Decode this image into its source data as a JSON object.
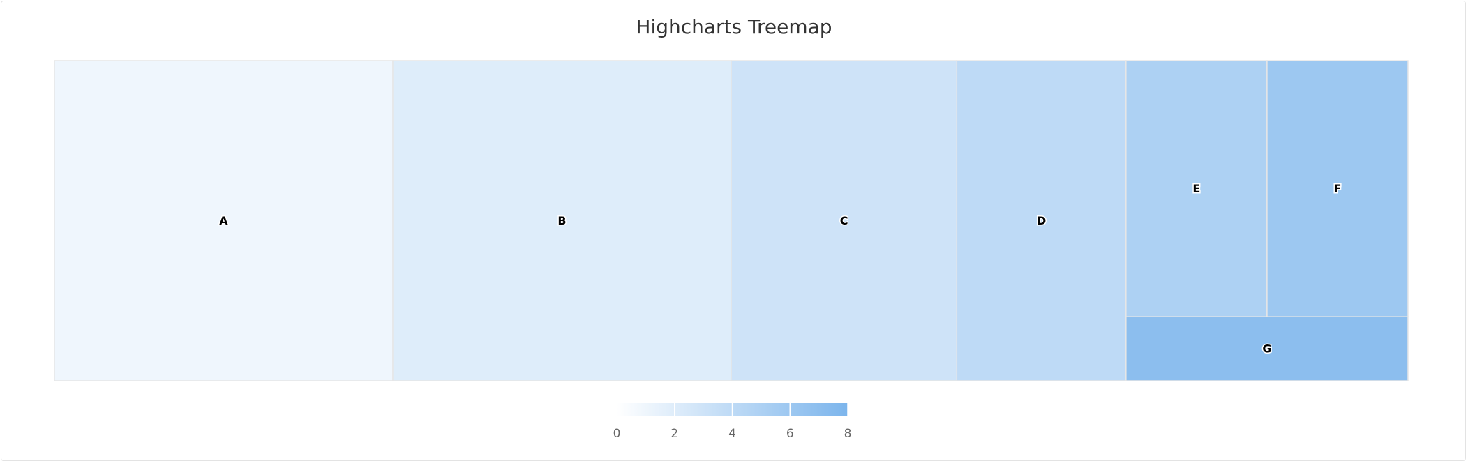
{
  "chart_data": {
    "type": "treemap",
    "title": "Highcharts Treemap",
    "points": [
      {
        "name": "A",
        "value": 6,
        "colorValue": 1
      },
      {
        "name": "B",
        "value": 6,
        "colorValue": 2
      },
      {
        "name": "C",
        "value": 4,
        "colorValue": 3
      },
      {
        "name": "D",
        "value": 3,
        "colorValue": 4
      },
      {
        "name": "E",
        "value": 2,
        "colorValue": 5
      },
      {
        "name": "F",
        "value": 2,
        "colorValue": 6
      },
      {
        "name": "G",
        "value": 1,
        "colorValue": 7
      }
    ],
    "color_axis": {
      "min": 0,
      "max": 8,
      "min_color": "#ffffff",
      "max_color": "#7cb5ec",
      "ticks": [
        "0",
        "2",
        "4",
        "6",
        "8"
      ]
    },
    "layout_algorithm": "squarified"
  }
}
